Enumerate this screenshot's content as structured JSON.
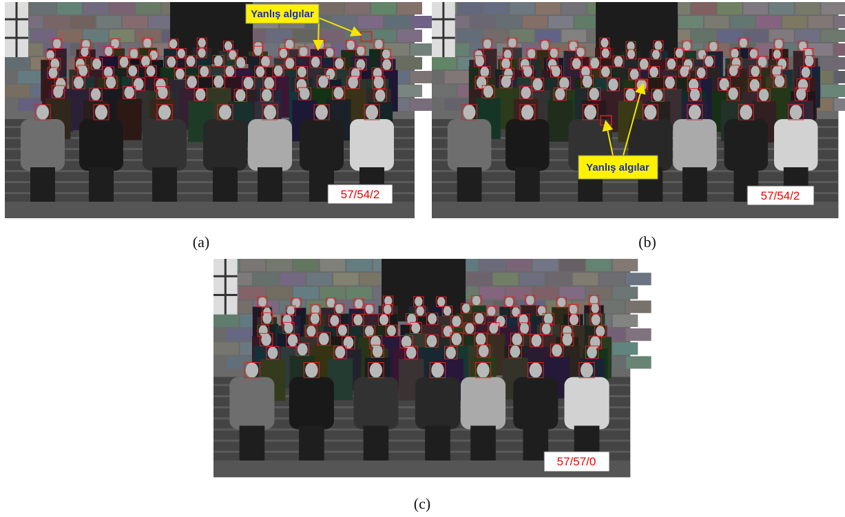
{
  "panels": [
    {
      "caption": "(a)",
      "annotation": "Yanlış algılar",
      "count": "57/54/2"
    },
    {
      "caption": "(b)",
      "annotation": "Yanlış algılar",
      "count": "57/54/2"
    },
    {
      "caption": "(c)",
      "count": "57/57/0"
    }
  ]
}
